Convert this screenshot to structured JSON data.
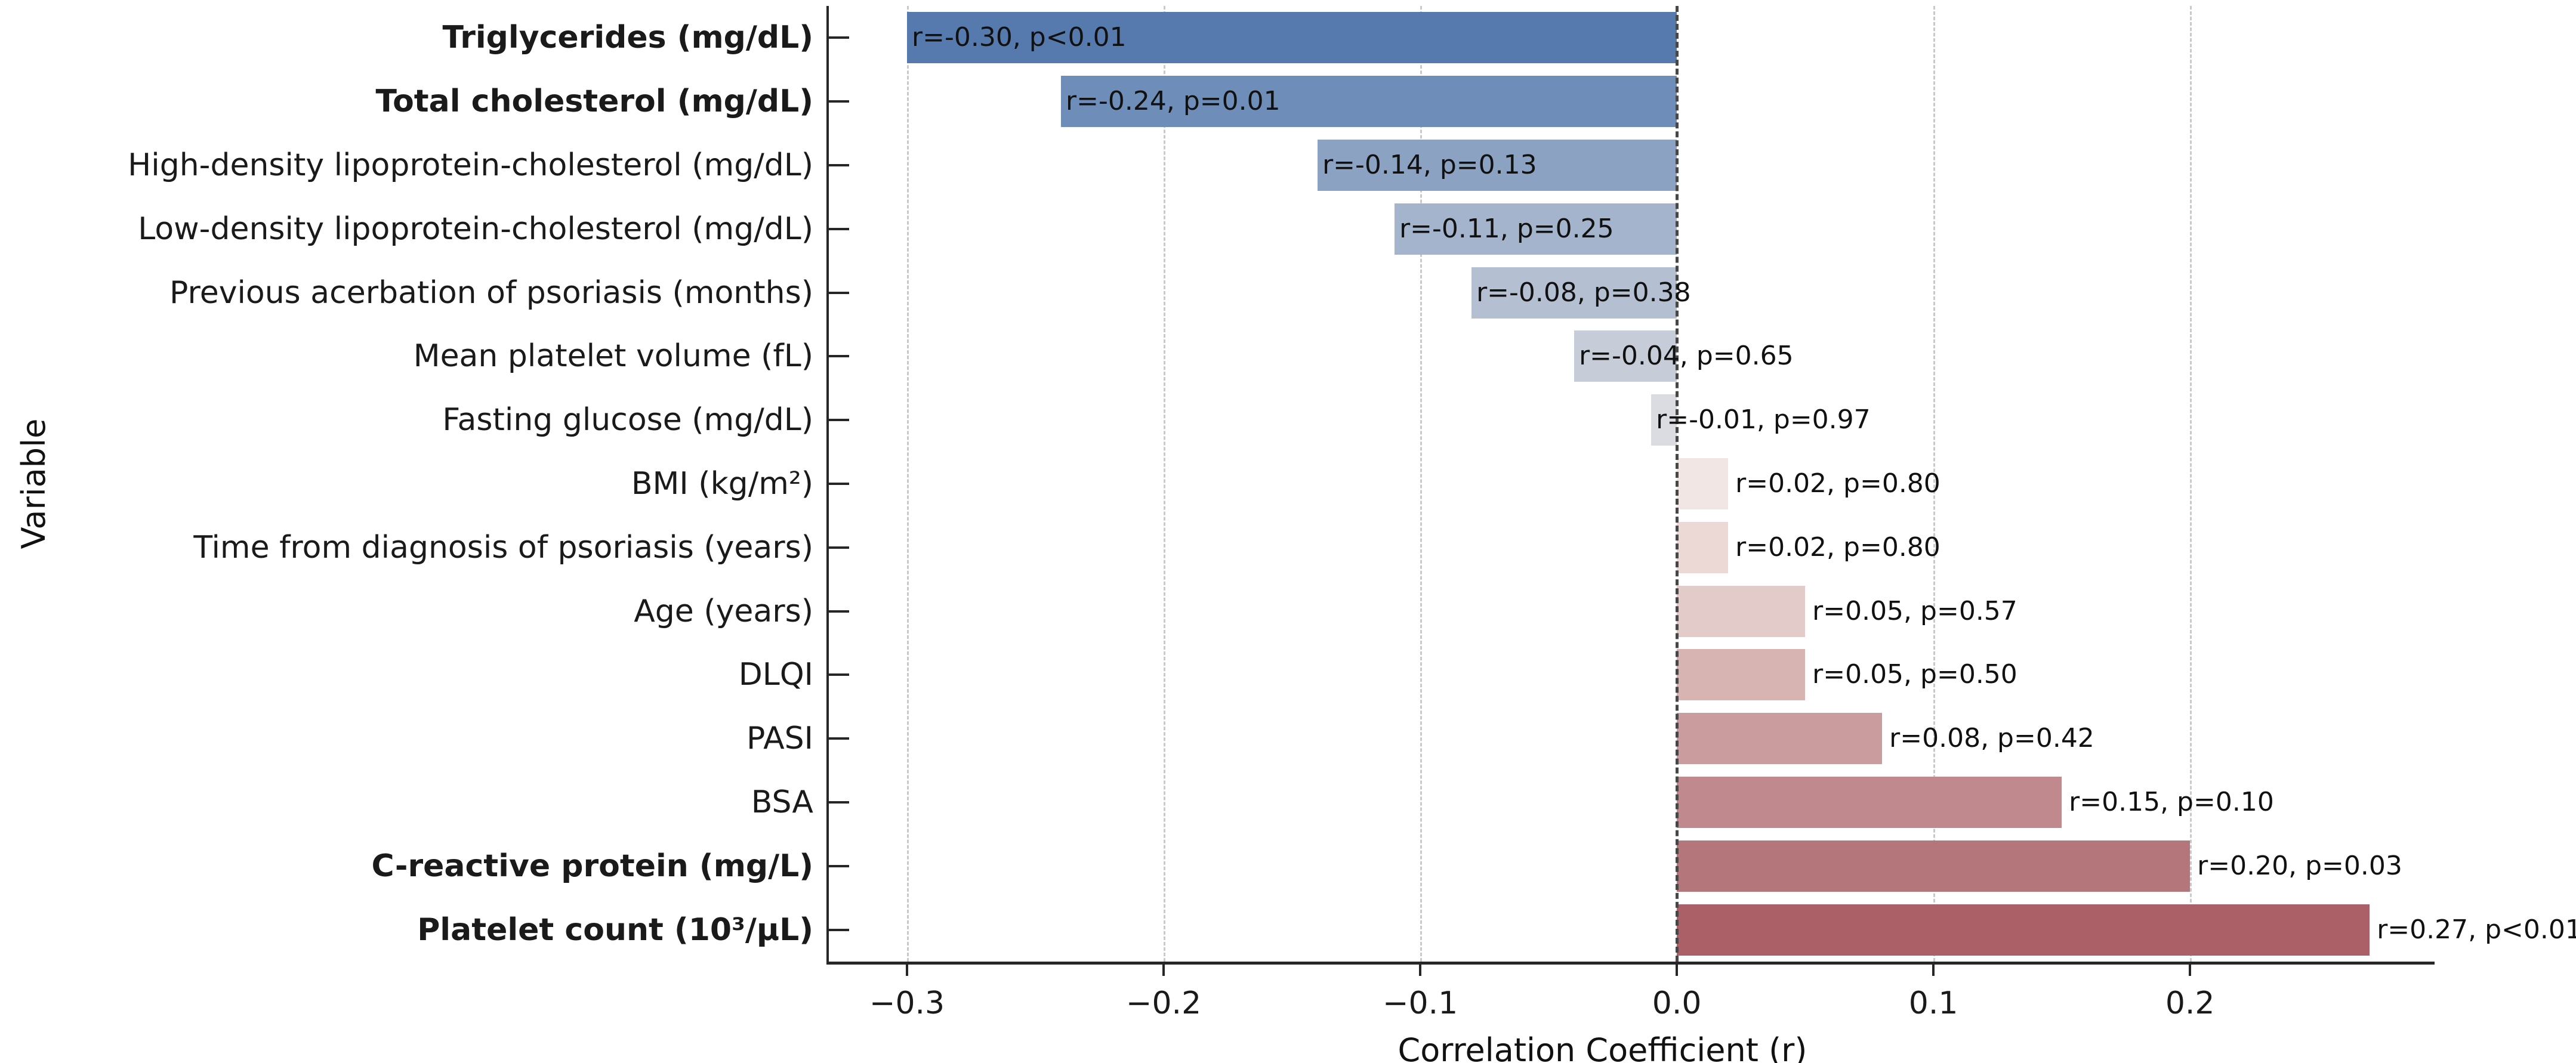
{
  "chart_data": {
    "type": "bar",
    "orientation": "horizontal",
    "xlabel": "Correlation Coefficient (r)",
    "ylabel": "Variable",
    "xlim": [
      -0.3314,
      0.2953
    ],
    "xticks": [
      -0.3,
      -0.2,
      -0.1,
      0.0,
      0.1,
      0.2
    ],
    "xtick_labels": [
      "−0.3",
      "−0.2",
      "−0.1",
      "0.0",
      "0.1",
      "0.2"
    ],
    "grid": "vertical-dashed-at-ticks",
    "zero_line": "dark-dashed-vertical",
    "legend": "none",
    "rows": [
      {
        "label": "Triglycerides (mg/dL)",
        "bold": true,
        "r": -0.3,
        "p": "<0.01",
        "annotation": "r=-0.30, p<0.01",
        "color": "#567aad"
      },
      {
        "label": "Total cholesterol (mg/dL)",
        "bold": true,
        "r": -0.24,
        "p": "=0.01",
        "annotation": "r=-0.24, p=0.01",
        "color": "#6e8db8"
      },
      {
        "label": "High-density lipoprotein-cholesterol (mg/dL)",
        "bold": false,
        "r": -0.14,
        "p": "=0.13",
        "annotation": "r=-0.14, p=0.13",
        "color": "#8ba2c2"
      },
      {
        "label": "Low-density lipoprotein-cholesterol (mg/dL)",
        "bold": false,
        "r": -0.11,
        "p": "=0.25",
        "annotation": "r=-0.11, p=0.25",
        "color": "#a4b4cc"
      },
      {
        "label": "Previous acerbation of psoriasis (months)",
        "bold": false,
        "r": -0.08,
        "p": "=0.38",
        "annotation": "r=-0.08, p=0.38",
        "color": "#b5bfd2"
      },
      {
        "label": "Mean platelet volume (fL)",
        "bold": false,
        "r": -0.04,
        "p": "=0.65",
        "annotation": "r=-0.04, p=0.65",
        "color": "#c6cdd9"
      },
      {
        "label": "Fasting glucose (mg/dL)",
        "bold": false,
        "r": -0.01,
        "p": "=0.97",
        "annotation": "r=-0.01, p=0.97",
        "color": "#dbdce2"
      },
      {
        "label": "BMI (kg/m²)",
        "bold": false,
        "r": 0.02,
        "p": "=0.80",
        "annotation": "r=0.02, p=0.80",
        "color": "#f1e6e4"
      },
      {
        "label": "Time from diagnosis of psoriasis (years)",
        "bold": false,
        "r": 0.02,
        "p": "=0.80",
        "annotation": "r=0.02, p=0.80",
        "color": "#ecd9d6"
      },
      {
        "label": "Age (years)",
        "bold": false,
        "r": 0.05,
        "p": "=0.57",
        "annotation": "r=0.05, p=0.57",
        "color": "#e2cbc9"
      },
      {
        "label": "DLQI",
        "bold": false,
        "r": 0.05,
        "p": "=0.50",
        "annotation": "r=0.05, p=0.50",
        "color": "#d7b3b2"
      },
      {
        "label": "PASI",
        "bold": false,
        "r": 0.08,
        "p": "=0.42",
        "annotation": "r=0.08, p=0.42",
        "color": "#cb9c9e"
      },
      {
        "label": "BSA",
        "bold": false,
        "r": 0.15,
        "p": "=0.10",
        "annotation": "r=0.15, p=0.10",
        "color": "#c0898d"
      },
      {
        "label": "C-reactive protein (mg/L)",
        "bold": true,
        "r": 0.2,
        "p": "=0.03",
        "annotation": "r=0.20, p=0.03",
        "color": "#b4767a"
      },
      {
        "label": "Platelet count (10³/μL)",
        "bold": true,
        "r": 0.27,
        "p": "<0.01",
        "annotation": "r=0.27, p<0.01",
        "color": "#ab6067"
      }
    ],
    "colors": {
      "negative_max": "#567aad",
      "positive_max": "#ab6067",
      "gridline": "#c9c9c9",
      "zero_line": "#474747",
      "spine": "#262626",
      "text": "#111111"
    }
  }
}
